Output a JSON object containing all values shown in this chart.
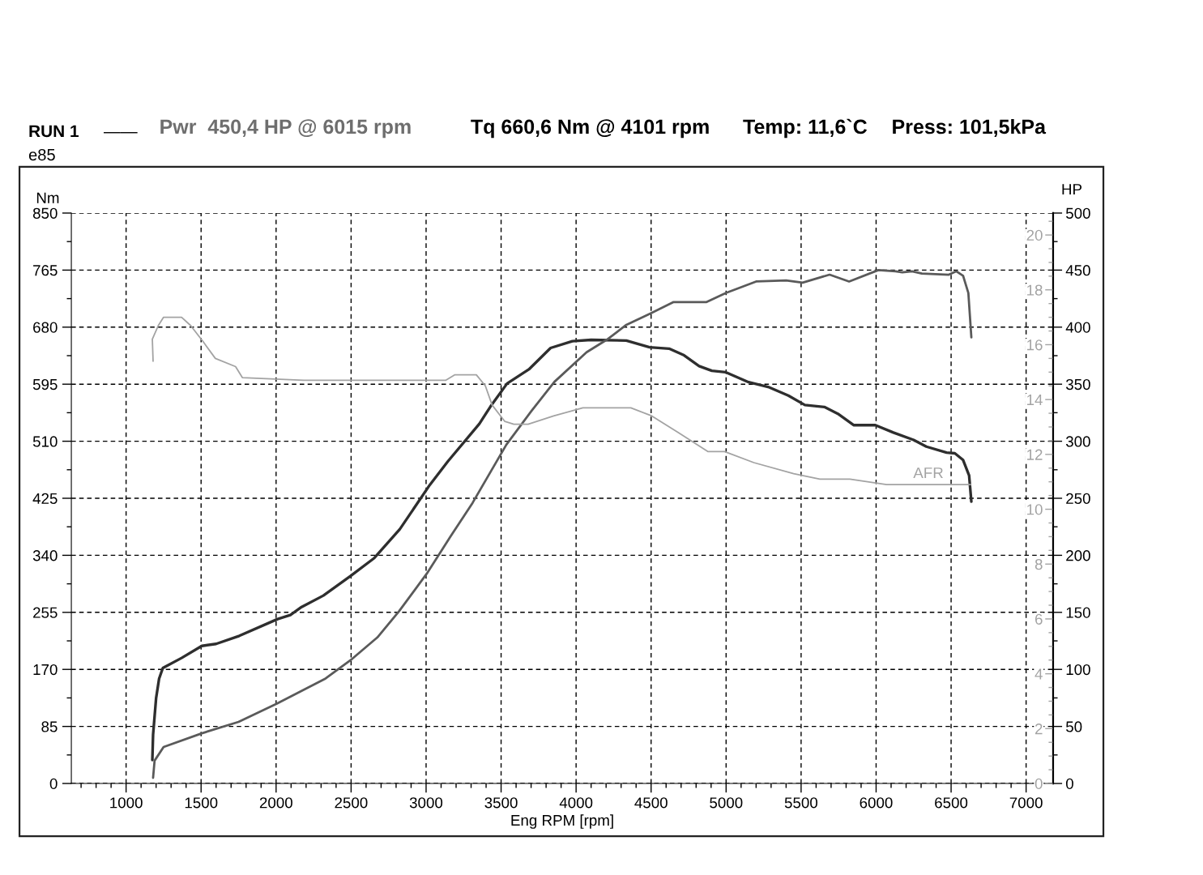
{
  "chart_data": {
    "type": "line",
    "title": "RUN 1",
    "subtitle": "e85",
    "xlabel": "Eng RPM [rpm]",
    "ylabel": "Nm",
    "y2label": "HP",
    "annotations": [
      "——",
      "Pwr  450,4 HP @ 6015 rpm",
      "Tq 660,6 Nm @ 4101 rpm",
      "Temp: 11,6`C",
      "Press: 101,5kPa"
    ],
    "xlim": [
      635,
      7180
    ],
    "xticks": [
      {
        "value": 700,
        "label": null
      },
      {
        "value": 800,
        "label": null
      },
      {
        "value": 900,
        "label": null
      },
      1000,
      {
        "value": 1100,
        "label": null
      },
      {
        "value": 1200,
        "label": null
      },
      {
        "value": 1300,
        "label": null
      },
      {
        "value": 1400,
        "label": null
      },
      1500,
      {
        "value": 1600,
        "label": null
      },
      {
        "value": 1700,
        "label": null
      },
      {
        "value": 1800,
        "label": null
      },
      {
        "value": 1900,
        "label": null
      },
      2000,
      {
        "value": 2100,
        "label": null
      },
      {
        "value": 2200,
        "label": null
      },
      {
        "value": 2300,
        "label": null
      },
      {
        "value": 2400,
        "label": null
      },
      2500,
      {
        "value": 2600,
        "label": null
      },
      {
        "value": 2700,
        "label": null
      },
      {
        "value": 2800,
        "label": null
      },
      {
        "value": 2900,
        "label": null
      },
      3000,
      {
        "value": 3100,
        "label": null
      },
      {
        "value": 3200,
        "label": null
      },
      {
        "value": 3300,
        "label": null
      },
      {
        "value": 3400,
        "label": null
      },
      3500,
      {
        "value": 3600,
        "label": null
      },
      {
        "value": 3700,
        "label": null
      },
      {
        "value": 3800,
        "label": null
      },
      {
        "value": 3900,
        "label": null
      },
      4000,
      {
        "value": 4100,
        "label": null
      },
      {
        "value": 4200,
        "label": null
      },
      {
        "value": 4300,
        "label": null
      },
      {
        "value": 4400,
        "label": null
      },
      4500,
      {
        "value": 4600,
        "label": null
      },
      {
        "value": 4700,
        "label": null
      },
      {
        "value": 4800,
        "label": null
      },
      {
        "value": 4900,
        "label": null
      },
      5000,
      {
        "value": 5100,
        "label": null
      },
      {
        "value": 5200,
        "label": null
      },
      {
        "value": 5300,
        "label": null
      },
      {
        "value": 5400,
        "label": null
      },
      5500,
      {
        "value": 5600,
        "label": null
      },
      {
        "value": 5700,
        "label": null
      },
      {
        "value": 5800,
        "label": null
      },
      {
        "value": 5900,
        "label": null
      },
      6000,
      {
        "value": 6100,
        "label": null
      },
      {
        "value": 6200,
        "label": null
      },
      {
        "value": 6300,
        "label": null
      },
      {
        "value": 6400,
        "label": null
      },
      6500,
      {
        "value": 6600,
        "label": null
      },
      {
        "value": 6700,
        "label": null
      },
      {
        "value": 6800,
        "label": null
      },
      {
        "value": 6900,
        "label": null
      },
      7000,
      {
        "value": 7100,
        "label": null
      }
    ],
    "ylim": [
      0,
      850
    ],
    "yticks": [
      0,
      {
        "value": 42.5,
        "label": null
      },
      85,
      {
        "value": 127.5,
        "label": null
      },
      170,
      {
        "value": 212.5,
        "label": null
      },
      255,
      {
        "value": 297.5,
        "label": null
      },
      340,
      {
        "value": 382.5,
        "label": null
      },
      425,
      {
        "value": 467.5,
        "label": null
      },
      510,
      {
        "value": 552.5,
        "label": null
      },
      595,
      {
        "value": 637.5,
        "label": null
      },
      680,
      {
        "value": 722.5,
        "label": null
      },
      765,
      {
        "value": 807.5,
        "label": null
      },
      850
    ],
    "y2lim": [
      0,
      500
    ],
    "y2ticks": [
      0,
      {
        "value": 25,
        "label": null
      },
      50,
      {
        "value": 75,
        "label": null
      },
      100,
      {
        "value": 125,
        "label": null
      },
      150,
      {
        "value": 175,
        "label": null
      },
      200,
      {
        "value": 225,
        "label": null
      },
      250,
      {
        "value": 275,
        "label": null
      },
      300,
      {
        "value": 325,
        "label": null
      },
      350,
      {
        "value": 375,
        "label": null
      },
      400,
      {
        "value": 425,
        "label": null
      },
      450,
      {
        "value": 475,
        "label": null
      },
      500
    ],
    "y3lim": [
      0,
      20.8
    ],
    "y3ticks": [
      0,
      {
        "value": 0.5,
        "label": null
      },
      {
        "value": 1,
        "label": null
      },
      {
        "value": 1.5,
        "label": null
      },
      2,
      {
        "value": 2.5,
        "label": null
      },
      {
        "value": 3,
        "label": null
      },
      {
        "value": 3.5,
        "label": null
      },
      4,
      {
        "value": 4.5,
        "label": null
      },
      {
        "value": 5,
        "label": null
      },
      {
        "value": 5.5,
        "label": null
      },
      6,
      {
        "value": 6.5,
        "label": null
      },
      {
        "value": 7,
        "label": null
      },
      {
        "value": 7.5,
        "label": null
      },
      8,
      {
        "value": 8.5,
        "label": null
      },
      {
        "value": 9,
        "label": null
      },
      {
        "value": 9.5,
        "label": null
      },
      10,
      {
        "value": 10.5,
        "label": null
      },
      {
        "value": 11,
        "label": null
      },
      {
        "value": 11.5,
        "label": null
      },
      12,
      {
        "value": 12.5,
        "label": null
      },
      {
        "value": 13,
        "label": null
      },
      {
        "value": 13.5,
        "label": null
      },
      14,
      {
        "value": 14.5,
        "label": null
      },
      {
        "value": 15,
        "label": null
      },
      {
        "value": 15.5,
        "label": null
      },
      16,
      {
        "value": 16.5,
        "label": null
      },
      {
        "value": 17,
        "label": null
      },
      {
        "value": 17.5,
        "label": null
      },
      18,
      {
        "value": 18.5,
        "label": null
      },
      {
        "value": 19,
        "label": null
      },
      {
        "value": 19.5,
        "label": null
      },
      20,
      {
        "value": 20.5,
        "label": null
      }
    ],
    "grid": true,
    "series": [
      {
        "color": "#2e2e2e",
        "x": [
          1175,
          1180,
          1200,
          1220,
          1245,
          1370,
          1505,
          1600,
          1755,
          2010,
          2095,
          2170,
          2315,
          2495,
          2655,
          2825,
          2925,
          3025,
          3145,
          3355,
          3430,
          3540,
          3685,
          3830,
          3975,
          4100,
          4335,
          4490,
          4620,
          4720,
          4820,
          4905,
          4995,
          5150,
          5280,
          5415,
          5525,
          5655,
          5745,
          5850,
          5995,
          6115,
          6250,
          6335,
          6470,
          6525,
          6580,
          6620,
          6635
        ],
        "values": [
          35,
          73,
          127,
          156,
          172,
          187,
          205,
          208,
          220,
          245,
          251,
          263,
          280,
          309,
          336,
          379,
          412,
          445,
          480,
          536,
          562,
          596,
          617,
          649,
          659,
          661,
          660,
          650,
          648,
          638,
          622,
          615,
          613,
          598,
          591,
          578,
          564,
          561,
          551,
          534,
          534,
          523,
          512,
          502,
          493,
          492,
          482,
          459,
          420
        ]
      },
      {
        "color": "#5a5a5a",
        "axis": "y2",
        "x": [
          1180,
          1190,
          1250,
          1505,
          1750,
          2005,
          2330,
          2505,
          2675,
          2820,
          3005,
          3165,
          3310,
          3535,
          3705,
          3855,
          4070,
          4205,
          4335,
          4495,
          4650,
          4870,
          5000,
          5200,
          5400,
          5510,
          5690,
          5820,
          6015,
          6130,
          6175,
          6240,
          6305,
          6485,
          6535,
          6580,
          6615,
          6635
        ],
        "values": [
          5,
          20,
          32,
          44,
          54,
          70,
          92,
          109,
          128,
          151,
          184,
          217,
          246,
          297,
          327,
          352,
          378,
          389,
          402,
          412,
          422,
          422,
          430,
          440,
          441,
          439,
          446,
          440,
          450,
          449,
          448,
          449,
          447,
          446,
          449,
          445,
          430,
          391
        ]
      },
      {
        "name": "AFR",
        "color": "#a3a3a3",
        "axis": "y3",
        "x": [
          1180,
          1175,
          1215,
          1250,
          1370,
          1430,
          1515,
          1595,
          1730,
          1775,
          2185,
          3130,
          3190,
          3335,
          3395,
          3440,
          3525,
          3585,
          3680,
          3850,
          4045,
          4365,
          4505,
          4680,
          4880,
          4990,
          5185,
          5450,
          5625,
          5825,
          6070,
          6355,
          6630
        ],
        "values": [
          15.4,
          16.2,
          16.7,
          17.0,
          17.0,
          16.7,
          16.1,
          15.5,
          15.2,
          14.8,
          14.7,
          14.7,
          14.9,
          14.9,
          14.5,
          13.8,
          13.2,
          13.1,
          13.1,
          13.4,
          13.7,
          13.7,
          13.4,
          12.8,
          12.1,
          12.1,
          11.7,
          11.3,
          11.1,
          11.1,
          10.9,
          10.9,
          10.9
        ]
      }
    ]
  }
}
